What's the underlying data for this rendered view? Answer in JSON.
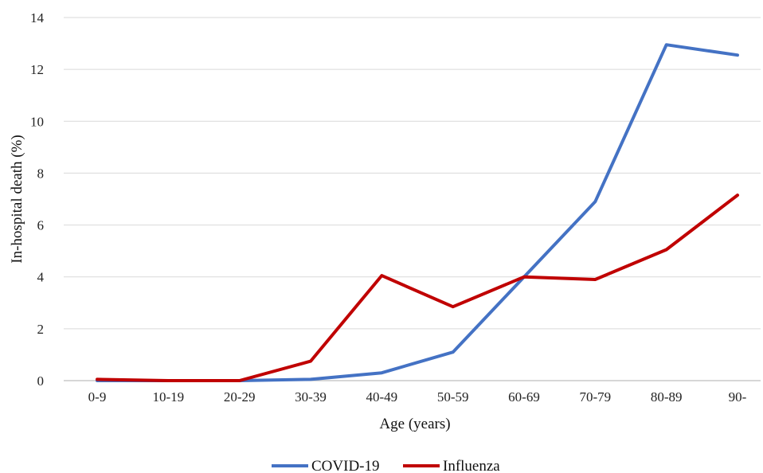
{
  "chart_data": {
    "type": "line",
    "title": "",
    "xlabel": "Age (years)",
    "ylabel": "In-hospital death (%)",
    "categories": [
      "0-9",
      "10-19",
      "20-29",
      "30-39",
      "40-49",
      "50-59",
      "60-69",
      "70-79",
      "80-89",
      "90-"
    ],
    "ylim": [
      0,
      14
    ],
    "yticks": [
      "0",
      "2",
      "4",
      "6",
      "8",
      "10",
      "12",
      "14"
    ],
    "grid": true,
    "legend_position": "bottom",
    "series": [
      {
        "name": "COVID-19",
        "color": "#4472c4",
        "values": [
          0,
          0,
          0,
          0.05,
          0.3,
          1.1,
          4.0,
          6.9,
          12.95,
          12.55
        ]
      },
      {
        "name": "Influenza",
        "color": "#c00000",
        "values": [
          0.05,
          0,
          0,
          0.75,
          4.05,
          2.85,
          4.0,
          3.9,
          5.05,
          7.15
        ]
      }
    ]
  }
}
